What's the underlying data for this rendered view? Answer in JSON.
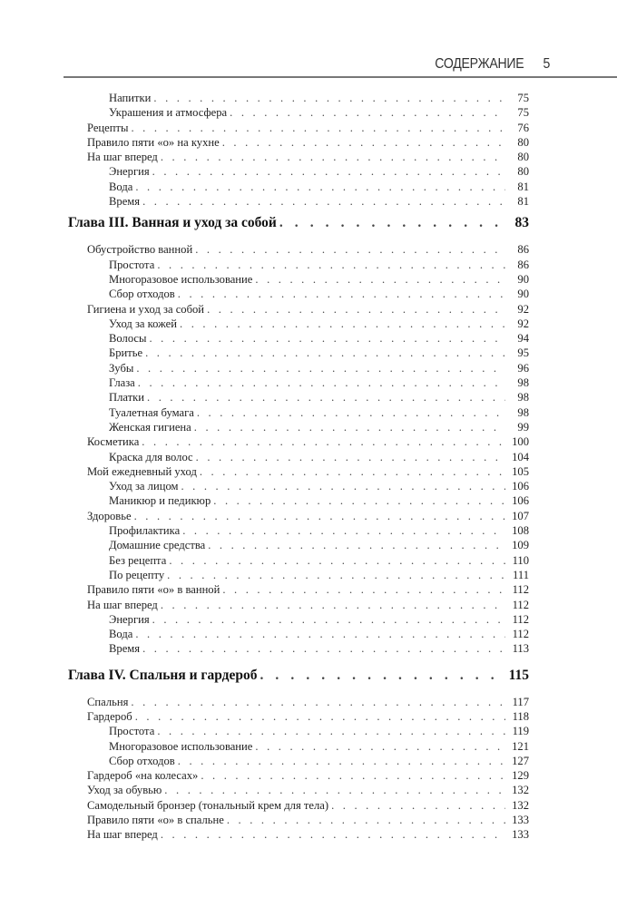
{
  "header": {
    "section": "СОДЕРЖАНИЕ",
    "page_number": "5"
  },
  "entries": [
    {
      "level": 2,
      "title": "Напитки",
      "page": "75"
    },
    {
      "level": 2,
      "title": "Украшения и атмосфера",
      "page": "75"
    },
    {
      "level": 1,
      "title": "Рецепты",
      "page": "76"
    },
    {
      "level": 1,
      "title": "Правило пяти «о» на кухне",
      "page": "80"
    },
    {
      "level": 1,
      "title": "На шаг вперед",
      "page": "80"
    },
    {
      "level": 2,
      "title": "Энергия",
      "page": "80"
    },
    {
      "level": 2,
      "title": "Вода",
      "page": "81"
    },
    {
      "level": 2,
      "title": "Время",
      "page": "81"
    },
    {
      "level": 0,
      "title": "Глава III. Ванная и уход за собой",
      "page": "83"
    },
    {
      "level": 1,
      "title": "Обустройство ванной",
      "page": "86"
    },
    {
      "level": 2,
      "title": "Простота",
      "page": "86"
    },
    {
      "level": 2,
      "title": "Многоразовое использование",
      "page": "90"
    },
    {
      "level": 2,
      "title": "Сбор отходов",
      "page": "90"
    },
    {
      "level": 1,
      "title": "Гигиена и уход за собой",
      "page": "92"
    },
    {
      "level": 2,
      "title": "Уход за кожей",
      "page": "92"
    },
    {
      "level": 2,
      "title": "Волосы",
      "page": "94"
    },
    {
      "level": 2,
      "title": "Бритье",
      "page": "95"
    },
    {
      "level": 2,
      "title": "Зубы",
      "page": "96"
    },
    {
      "level": 2,
      "title": "Глаза",
      "page": "98"
    },
    {
      "level": 2,
      "title": "Платки",
      "page": "98"
    },
    {
      "level": 2,
      "title": "Туалетная бумага",
      "page": "98"
    },
    {
      "level": 2,
      "title": "Женская гигиена",
      "page": "99"
    },
    {
      "level": 1,
      "title": "Косметика",
      "page": "100"
    },
    {
      "level": 2,
      "title": "Краска для волос",
      "page": "104"
    },
    {
      "level": 1,
      "title": "Мой ежедневный уход",
      "page": "105"
    },
    {
      "level": 2,
      "title": "Уход за лицом",
      "page": "106"
    },
    {
      "level": 2,
      "title": "Маникюр и педикюр",
      "page": "106"
    },
    {
      "level": 1,
      "title": "Здоровье",
      "page": "107"
    },
    {
      "level": 2,
      "title": "Профилактика",
      "page": "108"
    },
    {
      "level": 2,
      "title": "Домашние средства",
      "page": "109"
    },
    {
      "level": 2,
      "title": "Без рецепта",
      "page": "110"
    },
    {
      "level": 2,
      "title": "По рецепту",
      "page": "111"
    },
    {
      "level": 1,
      "title": "Правило пяти «о» в ванной",
      "page": "112"
    },
    {
      "level": 1,
      "title": "На шаг вперед",
      "page": "112"
    },
    {
      "level": 2,
      "title": "Энергия",
      "page": "112"
    },
    {
      "level": 2,
      "title": "Вода",
      "page": "112"
    },
    {
      "level": 2,
      "title": "Время",
      "page": "113"
    },
    {
      "level": 0,
      "title": "Глава IV. Спальня и гардероб",
      "page": "115"
    },
    {
      "level": 1,
      "title": "Спальня",
      "page": "117"
    },
    {
      "level": 1,
      "title": "Гардероб",
      "page": "118"
    },
    {
      "level": 2,
      "title": "Простота",
      "page": "119"
    },
    {
      "level": 2,
      "title": "Многоразовое использование",
      "page": "121"
    },
    {
      "level": 2,
      "title": "Сбор отходов",
      "page": "127"
    },
    {
      "level": 1,
      "title": "Гардероб «на колесах»",
      "page": "129"
    },
    {
      "level": 1,
      "title": "Уход за обувью",
      "page": "132"
    },
    {
      "level": 1,
      "title": "Самодельный бронзер (тональный крем для тела)",
      "page": "132"
    },
    {
      "level": 1,
      "title": "Правило пяти «о» в спальне",
      "page": "133"
    },
    {
      "level": 1,
      "title": "На шаг вперед",
      "page": "133"
    }
  ]
}
